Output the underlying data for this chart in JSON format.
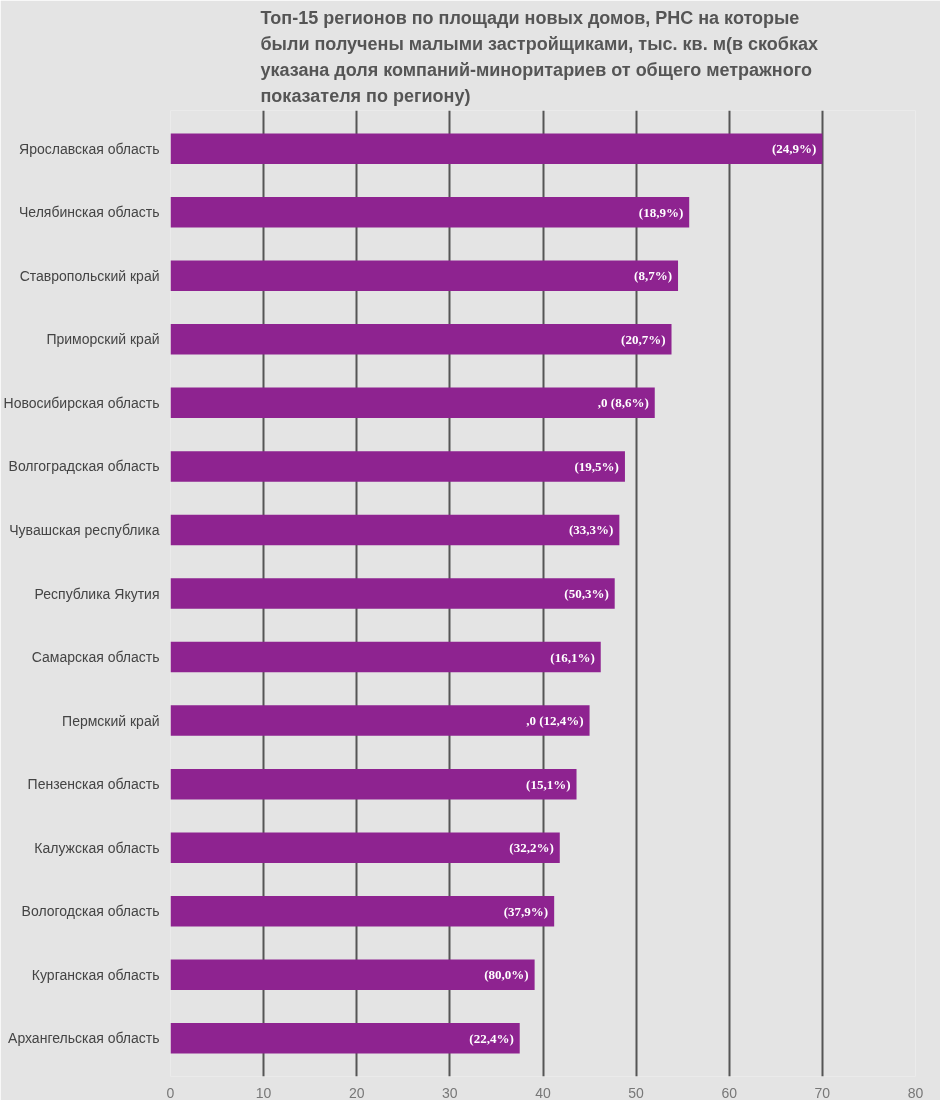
{
  "chart_data": {
    "type": "bar",
    "orientation": "horizontal",
    "title": "Топ-15 регионов по площади новых домов, РНС на которые были получены малыми застройщиками, тыс. кв. м(в скобках указана доля компаний-миноритариев от общего метражного показателя по региону)",
    "categories": [
      "Ярославская область",
      "Челябинская область",
      "Ставропольский край",
      "Приморский край",
      "Новосибирская область",
      "Волгоградская область",
      "Чувашская республика",
      "Республика Якутия",
      "Самарская область",
      "Пермский край",
      "Пензенская область",
      "Калужская область",
      "Вологодская область",
      "Курганская область",
      "Архангельская область"
    ],
    "values": [
      70.0,
      55.7,
      54.5,
      53.8,
      52.0,
      48.8,
      48.2,
      47.7,
      46.2,
      45.0,
      43.6,
      41.8,
      41.2,
      39.1,
      37.5
    ],
    "annotations": [
      {
        "text": "(24,9%)",
        "x": 70.0,
        "y": "Ярославская область"
      },
      {
        "text": "(18,9%)",
        "x": 55.7,
        "y": "Челябинская область"
      },
      {
        "text": "(8,7%)",
        "x": 54.5,
        "y": "Ставропольский край"
      },
      {
        "text": "(20,7%)",
        "x": 53.8,
        "y": "Приморский край"
      },
      {
        "text": ",0 (8,6%)",
        "x": 52.0,
        "y": "Новосибирская область"
      },
      {
        "text": "(19,5%)",
        "x": 48.8,
        "y": "Волгоградская область"
      },
      {
        "text": "(33,3%)",
        "x": 48.2,
        "y": "Чувашская республика"
      },
      {
        "text": "(50,3%)",
        "x": 47.7,
        "y": "Республика Якутия"
      },
      {
        "text": "(16,1%)",
        "x": 46.2,
        "y": "Самарская область"
      },
      {
        "text": ",0 (12,4%)",
        "x": 45.0,
        "y": "Пермский край"
      },
      {
        "text": "(15,1%)",
        "x": 43.6,
        "y": "Пензенская область"
      },
      {
        "text": "(32,2%)",
        "x": 41.8,
        "y": "Калужская область"
      },
      {
        "text": "(37,9%)",
        "x": 41.2,
        "y": "Вологодская область"
      },
      {
        "text": "(80,0%)",
        "x": 39.1,
        "y": "Курганская область"
      },
      {
        "text": "(22,4%)",
        "x": 37.5,
        "y": "Архангельская область"
      }
    ],
    "color": "#8e2390",
    "xlim": [
      0,
      80
    ],
    "xticks": [
      0,
      10,
      20,
      30,
      40,
      50,
      60,
      70,
      80
    ],
    "grid": "x",
    "legend": false
  }
}
